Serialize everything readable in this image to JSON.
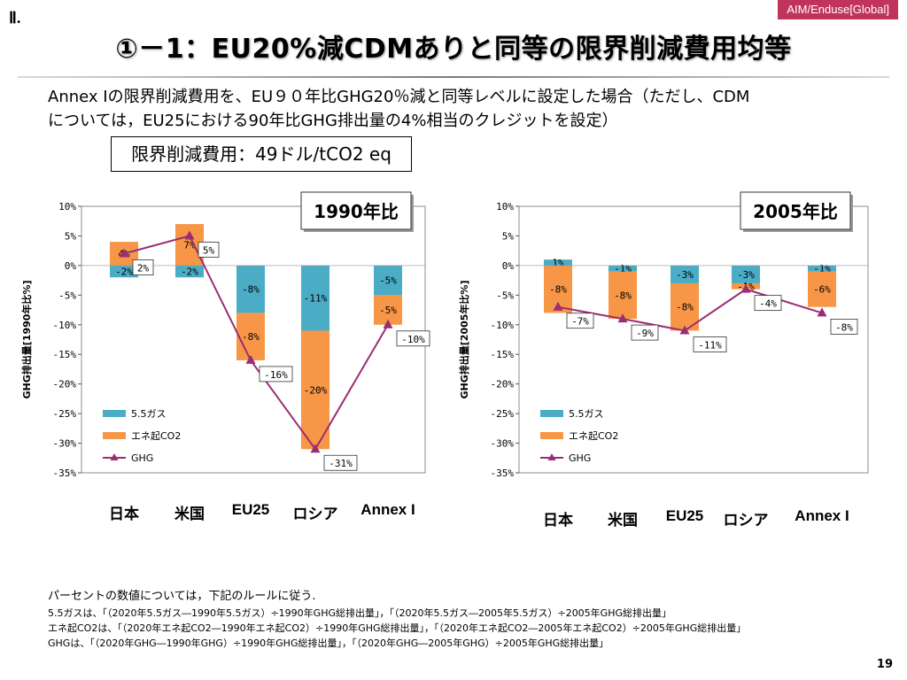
{
  "header": {
    "tag": "AIM/Enduse[Global]",
    "section": "Ⅱ.",
    "title": "①－1：EU20%減CDMありと同等の限界削減費用均等"
  },
  "description": {
    "line1": "Annex Iの限界削減費用を、EU９０年比GHG20％減と同等レベルに設定した場合（ただし、CDM",
    "line2": "については，EU25における90年比GHG排出量の4%相当のクレジットを設定）"
  },
  "cost_box": "限界削減費用：49ドル/tCO2 eq",
  "chart_data": [
    {
      "type": "bar",
      "badge": "1990年比",
      "ylabel": "GHG排出量[1990年比%]",
      "ylim": [
        -35,
        10
      ],
      "yticks": [
        "10%",
        "5%",
        "0%",
        "-5%",
        "-10%",
        "-15%",
        "-20%",
        "-25%",
        "-30%",
        "-35%"
      ],
      "categories": [
        "日本",
        "米国",
        "EU25",
        "ロシア",
        "Annex I"
      ],
      "series": [
        {
          "name": "5.5ガス",
          "color": "#4bacc6",
          "values": [
            -2,
            -2,
            -8,
            -11,
            -5
          ],
          "labels": [
            "-2%",
            "-2%",
            "-8%",
            "-11%",
            "-5%"
          ]
        },
        {
          "name": "エネ起CO2",
          "color": "#f79646",
          "values": [
            4,
            7,
            -8,
            -20,
            -5
          ],
          "labels": [
            "4%",
            "7%",
            "-8%",
            "-20%",
            "-5%"
          ]
        },
        {
          "name": "GHG",
          "color": "#9b2d73",
          "values": [
            2,
            5,
            -16,
            -31,
            -10
          ],
          "labels": [
            "2%",
            "5%",
            "-16%",
            "-31%",
            "-10%"
          ]
        }
      ]
    },
    {
      "type": "bar",
      "badge": "2005年比",
      "ylabel": "GHG排出量[2005年比%]",
      "ylim": [
        -35,
        10
      ],
      "yticks": [
        "10%",
        "5%",
        "0%",
        "-5%",
        "-10%",
        "-15%",
        "-20%",
        "-25%",
        "-30%",
        "-35%"
      ],
      "categories": [
        "日本",
        "米国",
        "EU25",
        "ロシア",
        "Annex I"
      ],
      "series": [
        {
          "name": "5.5ガス",
          "color": "#4bacc6",
          "values": [
            1,
            -1,
            -3,
            -3,
            -1
          ],
          "labels": [
            "1%",
            "-1%",
            "-3%",
            "-3%",
            "-1%"
          ]
        },
        {
          "name": "エネ起CO2",
          "color": "#f79646",
          "values": [
            -8,
            -8,
            -8,
            -1,
            -6
          ],
          "labels": [
            "-8%",
            "-8%",
            "-8%",
            "-1%",
            "-6%"
          ]
        },
        {
          "name": "GHG",
          "color": "#9b2d73",
          "values": [
            -7,
            -9,
            -11,
            -4,
            -8
          ],
          "labels": [
            "-7%",
            "-9%",
            "-11%",
            "-4%",
            "-8%"
          ]
        }
      ]
    }
  ],
  "notes": {
    "lead": "パーセントの数値については，下記のルールに従う.",
    "line1": "5.5ガスは、「（2020年5.5ガス―1990年5.5ガス）÷1990年GHG総排出量」，「（2020年5.5ガス―2005年5.5ガス）÷2005年GHG総排出量」",
    "line2": "エネ起CO2は、「（2020年エネ起CO2―1990年エネ起CO2）÷1990年GHG総排出量」，「（2020年エネ起CO2―2005年エネ起CO2）÷2005年GHG総排出量」",
    "line3": "GHGは、「（2020年GHG―1990年GHG）÷1990年GHG総排出量」，「（2020年GHG―2005年GHG）÷2005年GHG総排出量」"
  },
  "page_number": "19"
}
